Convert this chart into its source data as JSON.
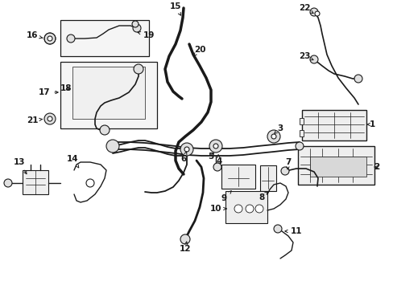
{
  "bg_color": "#ffffff",
  "line_color": "#1a1a1a",
  "figsize": [
    4.89,
    3.6
  ],
  "dpi": 100,
  "xlim": [
    0,
    489
  ],
  "ylim": [
    0,
    360
  ]
}
